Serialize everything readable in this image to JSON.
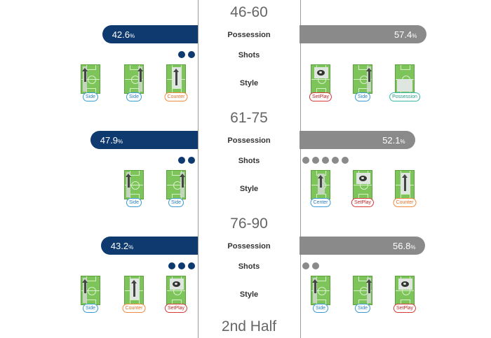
{
  "labels": {
    "possession": "Possession",
    "shots": "Shots",
    "style": "Style",
    "pct": "%"
  },
  "periods": [
    {
      "title": "46-60",
      "home_possession": 42.6,
      "away_possession": 57.4,
      "home_possession_text": "42.6",
      "away_possession_text": "57.4",
      "home_shots": 2,
      "away_shots": 0,
      "home_styles": [
        {
          "type": "side",
          "label": "Side",
          "icon": "side-left"
        },
        {
          "type": "side",
          "label": "Side",
          "icon": "side-right"
        },
        {
          "type": "counter",
          "label": "Counter",
          "icon": "counter"
        }
      ],
      "away_styles": [
        {
          "type": "setplay",
          "label": "SetPlay",
          "icon": "setplay"
        },
        {
          "type": "side",
          "label": "Side",
          "icon": "side-right"
        },
        {
          "type": "possession",
          "label": "Possession",
          "icon": "possession"
        }
      ]
    },
    {
      "title": "61-75",
      "home_possession": 47.9,
      "away_possession": 52.1,
      "home_possession_text": "47.9",
      "away_possession_text": "52.1",
      "home_shots": 2,
      "away_shots": 5,
      "home_styles": [
        {
          "type": "side",
          "label": "Side",
          "icon": "side-left"
        },
        {
          "type": "side",
          "label": "Side",
          "icon": "side-right"
        }
      ],
      "away_styles": [
        {
          "type": "center",
          "label": "Center",
          "icon": "center"
        },
        {
          "type": "setplay",
          "label": "SetPlay",
          "icon": "setplay"
        },
        {
          "type": "counter",
          "label": "Counter",
          "icon": "counter"
        }
      ]
    },
    {
      "title": "76-90",
      "home_possession": 43.2,
      "away_possession": 56.8,
      "home_possession_text": "43.2",
      "away_possession_text": "56.8",
      "home_shots": 3,
      "away_shots": 2,
      "home_styles": [
        {
          "type": "side",
          "label": "Side",
          "icon": "side-left"
        },
        {
          "type": "counter",
          "label": "Counter",
          "icon": "counter"
        },
        {
          "type": "setplay",
          "label": "SetPlay",
          "icon": "setplay"
        }
      ],
      "away_styles": [
        {
          "type": "side",
          "label": "Side",
          "icon": "side-left"
        },
        {
          "type": "side",
          "label": "Side",
          "icon": "side-right"
        },
        {
          "type": "setplay",
          "label": "SetPlay",
          "icon": "setplay"
        }
      ]
    }
  ],
  "footer_title": "2nd Half",
  "colors": {
    "home": "#0e3a70",
    "away": "#8a8a8a",
    "pitch": "#7dc45a"
  }
}
